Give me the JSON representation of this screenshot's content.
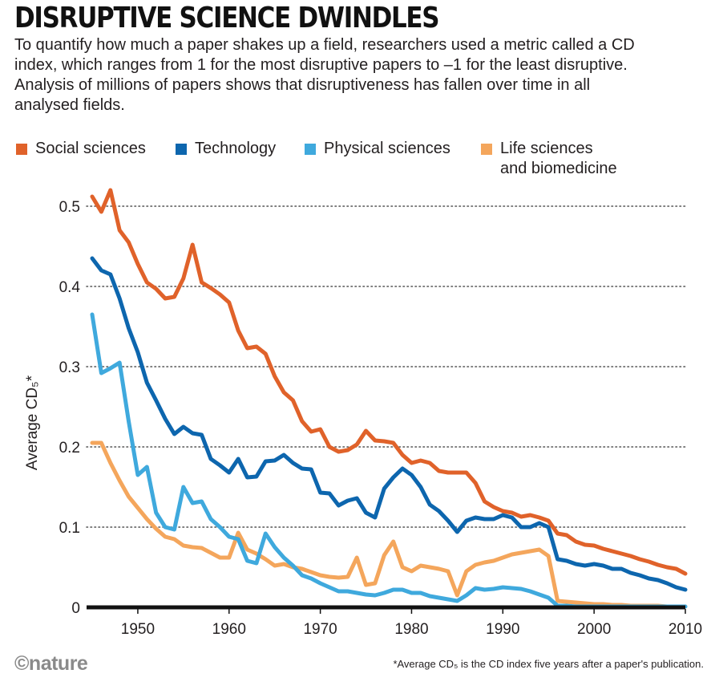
{
  "title": "DISRUPTIVE SCIENCE DWINDLES",
  "subtitle": "To quantify how much a paper shakes up a field, researchers used a metric called a CD index, which ranges from 1 for the most disruptive papers to –1 for the least disruptive. Analysis of millions of papers shows that disruptiveness has fallen over time in all analysed fields.",
  "footer": {
    "logo": "©nature",
    "footnote": "*Average CD₅ is the CD index five years after a paper's publication."
  },
  "chart_data": {
    "type": "line",
    "title": "DISRUPTIVE SCIENCE DWINDLES",
    "xlabel": "",
    "ylabel": "Average CD₅*",
    "xlim": [
      1945,
      2010
    ],
    "ylim": [
      0,
      0.5
    ],
    "x_ticks": [
      1950,
      1960,
      1970,
      1980,
      1990,
      2000,
      2010
    ],
    "y_ticks": [
      {
        "value": 0,
        "label": "0"
      },
      {
        "value": 0.1,
        "label": "0.1"
      },
      {
        "value": 0.2,
        "label": "0.2"
      },
      {
        "value": 0.3,
        "label": "0.3"
      },
      {
        "value": 0.4,
        "label": "0.4"
      },
      {
        "value": 0.5,
        "label": "0.5"
      }
    ],
    "grid": "horizontal-dotted",
    "legend_position": "top",
    "series": [
      {
        "name": "Social sciences",
        "color": "#e0622a",
        "x": [
          1945,
          1946,
          1947,
          1948,
          1949,
          1950,
          1951,
          1952,
          1953,
          1954,
          1955,
          1956,
          1957,
          1958,
          1959,
          1960,
          1961,
          1962,
          1963,
          1964,
          1965,
          1966,
          1967,
          1968,
          1969,
          1970,
          1971,
          1972,
          1973,
          1974,
          1975,
          1976,
          1977,
          1978,
          1979,
          1980,
          1981,
          1982,
          1983,
          1984,
          1985,
          1986,
          1987,
          1988,
          1989,
          1990,
          1991,
          1992,
          1993,
          1994,
          1995,
          1996,
          1997,
          1998,
          1999,
          2000,
          2001,
          2002,
          2003,
          2004,
          2005,
          2006,
          2007,
          2008,
          2009,
          2010
        ],
        "y": [
          0.512,
          0.493,
          0.52,
          0.47,
          0.455,
          0.428,
          0.405,
          0.397,
          0.385,
          0.387,
          0.41,
          0.452,
          0.405,
          0.398,
          0.39,
          0.38,
          0.345,
          0.323,
          0.325,
          0.316,
          0.288,
          0.268,
          0.258,
          0.232,
          0.219,
          0.222,
          0.2,
          0.194,
          0.196,
          0.203,
          0.22,
          0.208,
          0.207,
          0.205,
          0.19,
          0.18,
          0.183,
          0.18,
          0.17,
          0.168,
          0.168,
          0.168,
          0.155,
          0.132,
          0.125,
          0.12,
          0.118,
          0.113,
          0.115,
          0.112,
          0.108,
          0.092,
          0.09,
          0.082,
          0.078,
          0.077,
          0.073,
          0.07,
          0.067,
          0.064,
          0.06,
          0.057,
          0.053,
          0.05,
          0.048,
          0.042
        ]
      },
      {
        "name": "Technology",
        "color": "#0d66ae",
        "x": [
          1945,
          1946,
          1947,
          1948,
          1949,
          1950,
          1951,
          1952,
          1953,
          1954,
          1955,
          1956,
          1957,
          1958,
          1959,
          1960,
          1961,
          1962,
          1963,
          1964,
          1965,
          1966,
          1967,
          1968,
          1969,
          1970,
          1971,
          1972,
          1973,
          1974,
          1975,
          1976,
          1977,
          1978,
          1979,
          1980,
          1981,
          1982,
          1983,
          1984,
          1985,
          1986,
          1987,
          1988,
          1989,
          1990,
          1991,
          1992,
          1993,
          1994,
          1995,
          1996,
          1997,
          1998,
          1999,
          2000,
          2001,
          2002,
          2003,
          2004,
          2005,
          2006,
          2007,
          2008,
          2009,
          2010
        ],
        "y": [
          0.435,
          0.42,
          0.415,
          0.385,
          0.348,
          0.318,
          0.28,
          0.258,
          0.235,
          0.216,
          0.225,
          0.217,
          0.215,
          0.185,
          0.177,
          0.168,
          0.185,
          0.162,
          0.163,
          0.182,
          0.183,
          0.19,
          0.18,
          0.173,
          0.172,
          0.143,
          0.142,
          0.127,
          0.133,
          0.136,
          0.118,
          0.112,
          0.148,
          0.162,
          0.173,
          0.165,
          0.15,
          0.128,
          0.12,
          0.108,
          0.094,
          0.108,
          0.112,
          0.11,
          0.11,
          0.115,
          0.112,
          0.1,
          0.1,
          0.105,
          0.1,
          0.06,
          0.058,
          0.054,
          0.052,
          0.054,
          0.052,
          0.048,
          0.048,
          0.043,
          0.04,
          0.036,
          0.034,
          0.03,
          0.025,
          0.022
        ]
      },
      {
        "name": "Physical sciences",
        "color": "#3fa9dd",
        "x": [
          1945,
          1946,
          1947,
          1948,
          1949,
          1950,
          1951,
          1952,
          1953,
          1954,
          1955,
          1956,
          1957,
          1958,
          1959,
          1960,
          1961,
          1962,
          1963,
          1964,
          1965,
          1966,
          1967,
          1968,
          1969,
          1970,
          1971,
          1972,
          1973,
          1974,
          1975,
          1976,
          1977,
          1978,
          1979,
          1980,
          1981,
          1982,
          1983,
          1984,
          1985,
          1986,
          1987,
          1988,
          1989,
          1990,
          1991,
          1992,
          1993,
          1994,
          1995,
          1996,
          1997,
          1998,
          1999,
          2000,
          2001,
          2002,
          2003,
          2004,
          2005,
          2006,
          2007,
          2008,
          2009,
          2010
        ],
        "y": [
          0.365,
          0.292,
          0.298,
          0.305,
          0.232,
          0.165,
          0.175,
          0.118,
          0.1,
          0.097,
          0.15,
          0.13,
          0.132,
          0.11,
          0.1,
          0.088,
          0.085,
          0.058,
          0.055,
          0.092,
          0.075,
          0.062,
          0.052,
          0.04,
          0.036,
          0.03,
          0.025,
          0.02,
          0.02,
          0.018,
          0.016,
          0.015,
          0.018,
          0.022,
          0.022,
          0.018,
          0.018,
          0.014,
          0.012,
          0.01,
          0.008,
          0.015,
          0.024,
          0.022,
          0.023,
          0.025,
          0.024,
          0.023,
          0.02,
          0.016,
          0.012,
          0.002,
          0.002,
          0.001,
          0.001,
          0.001,
          0.001,
          0.001,
          0.001,
          0.001,
          0.001,
          0.001,
          0.001,
          0.001,
          0.001,
          0.001
        ]
      },
      {
        "name": "Life sciences\nand biomedicine",
        "color": "#f4a65c",
        "x": [
          1945,
          1946,
          1947,
          1948,
          1949,
          1950,
          1951,
          1952,
          1953,
          1954,
          1955,
          1956,
          1957,
          1958,
          1959,
          1960,
          1961,
          1962,
          1963,
          1964,
          1965,
          1966,
          1967,
          1968,
          1969,
          1970,
          1971,
          1972,
          1973,
          1974,
          1975,
          1976,
          1977,
          1978,
          1979,
          1980,
          1981,
          1982,
          1983,
          1984,
          1985,
          1986,
          1987,
          1988,
          1989,
          1990,
          1991,
          1992,
          1993,
          1994,
          1995,
          1996,
          1997,
          1998,
          1999,
          2000,
          2001,
          2002,
          2003,
          2004,
          2005,
          2006,
          2007,
          2008,
          2009,
          2010
        ],
        "y": [
          0.205,
          0.205,
          0.18,
          0.158,
          0.138,
          0.124,
          0.11,
          0.098,
          0.088,
          0.085,
          0.077,
          0.075,
          0.074,
          0.068,
          0.062,
          0.062,
          0.093,
          0.072,
          0.067,
          0.06,
          0.052,
          0.054,
          0.05,
          0.048,
          0.044,
          0.04,
          0.038,
          0.037,
          0.038,
          0.062,
          0.028,
          0.03,
          0.065,
          0.082,
          0.05,
          0.045,
          0.052,
          0.05,
          0.048,
          0.045,
          0.015,
          0.045,
          0.053,
          0.056,
          0.058,
          0.062,
          0.066,
          0.068,
          0.07,
          0.072,
          0.064,
          0.008,
          0.007,
          0.006,
          0.005,
          0.004,
          0.004,
          0.003,
          0.003,
          0.002,
          0.002,
          0.002,
          0.002,
          0.001,
          0.001,
          0.001
        ]
      }
    ]
  }
}
